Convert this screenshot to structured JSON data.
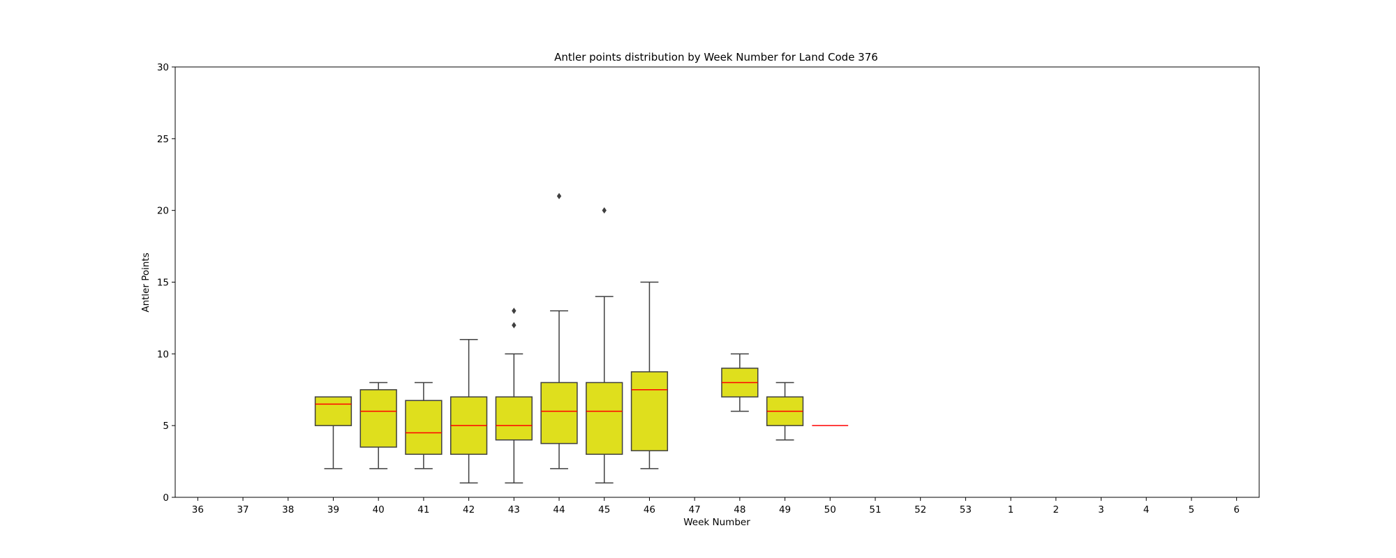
{
  "chart_data": {
    "type": "box",
    "title": "Antler points distribution by Week Number for Land Code 376",
    "xlabel": "Week Number",
    "ylabel": "Antler Points",
    "ylim": [
      0,
      30
    ],
    "yticks": [
      0,
      5,
      10,
      15,
      20,
      25,
      30
    ],
    "grid": false,
    "categories": [
      "36",
      "37",
      "38",
      "39",
      "40",
      "41",
      "42",
      "43",
      "44",
      "45",
      "46",
      "47",
      "48",
      "49",
      "50",
      "51",
      "52",
      "53",
      "1",
      "2",
      "3",
      "4",
      "5",
      "6"
    ],
    "boxes": [
      {
        "week": "39",
        "whislo": 2,
        "q1": 5,
        "med": 6.5,
        "q3": 7,
        "whishi": 7,
        "fliers": []
      },
      {
        "week": "40",
        "whislo": 2,
        "q1": 3.5,
        "med": 6,
        "q3": 7.5,
        "whishi": 8,
        "fliers": []
      },
      {
        "week": "41",
        "whislo": 2,
        "q1": 3,
        "med": 4.5,
        "q3": 6.75,
        "whishi": 8,
        "fliers": []
      },
      {
        "week": "42",
        "whislo": 1,
        "q1": 3,
        "med": 5,
        "q3": 7,
        "whishi": 11,
        "fliers": []
      },
      {
        "week": "43",
        "whislo": 1,
        "q1": 4,
        "med": 5,
        "q3": 7,
        "whishi": 10,
        "fliers": [
          12,
          13
        ]
      },
      {
        "week": "44",
        "whislo": 2,
        "q1": 3.75,
        "med": 6,
        "q3": 8,
        "whishi": 13,
        "fliers": [
          21
        ]
      },
      {
        "week": "45",
        "whislo": 1,
        "q1": 3,
        "med": 6,
        "q3": 8,
        "whishi": 14,
        "fliers": [
          20
        ]
      },
      {
        "week": "46",
        "whislo": 2,
        "q1": 3.25,
        "med": 7.5,
        "q3": 8.75,
        "whishi": 15,
        "fliers": []
      },
      {
        "week": "48",
        "whislo": 6,
        "q1": 7,
        "med": 8,
        "q3": 9,
        "whishi": 10,
        "fliers": []
      },
      {
        "week": "49",
        "whislo": 4,
        "q1": 5,
        "med": 6,
        "q3": 7,
        "whishi": 8,
        "fliers": []
      },
      {
        "week": "50",
        "whislo": 5,
        "q1": 5,
        "med": 5,
        "q3": 5,
        "whishi": 5,
        "fliers": []
      }
    ],
    "colors": {
      "box_fill": "#dfdf1d",
      "box_edge": "#3f3f3f",
      "median": "#ff0000",
      "whisker": "#3f3f3f",
      "flier": "#3f3f3f",
      "axis": "#000000"
    }
  }
}
